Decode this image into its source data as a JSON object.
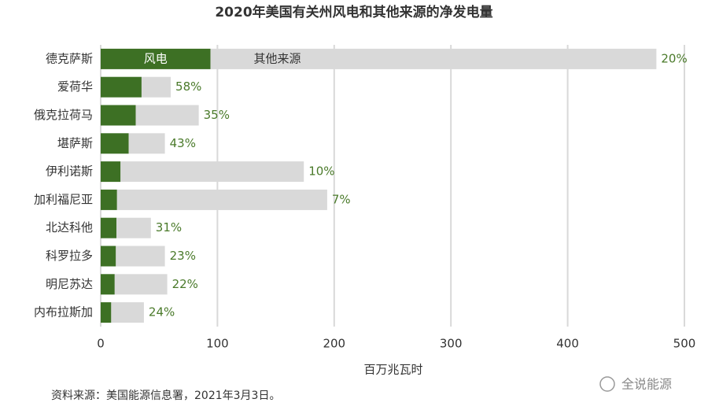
{
  "chart_data": {
    "type": "stacked-barh",
    "title": "2020年美国有关州风电和其他来源的净发电量",
    "categories": [
      "德克萨斯",
      "爱荷华",
      "俄克拉荷马",
      "堪萨斯",
      "伊利诺斯",
      "加利福尼亚",
      "北达科他",
      "科罗拉多",
      "明尼苏达",
      "内布拉斯加"
    ],
    "series": [
      {
        "name": "风电",
        "color": "#3d7024",
        "values": [
          94,
          35,
          30,
          24,
          17,
          14,
          13.5,
          13,
          12,
          9
        ]
      },
      {
        "name": "其他来源",
        "color": "#d9d9d9",
        "values": [
          382,
          25,
          54,
          31,
          157,
          180,
          29.5,
          42,
          45,
          28
        ]
      }
    ],
    "share_labels": [
      "20%",
      "58%",
      "35%",
      "43%",
      "10%",
      "7%",
      "31%",
      "23%",
      "22%",
      "24%"
    ],
    "share_label_color": "#4a7a2a",
    "xlim": [
      0,
      500
    ],
    "xticks": [
      0,
      100,
      200,
      300,
      400,
      500
    ],
    "xlabel": "百万兆瓦时",
    "grid": true,
    "source": "资料来源：美国能源信息署，2021年3月3日。",
    "watermark": "全说能源"
  }
}
